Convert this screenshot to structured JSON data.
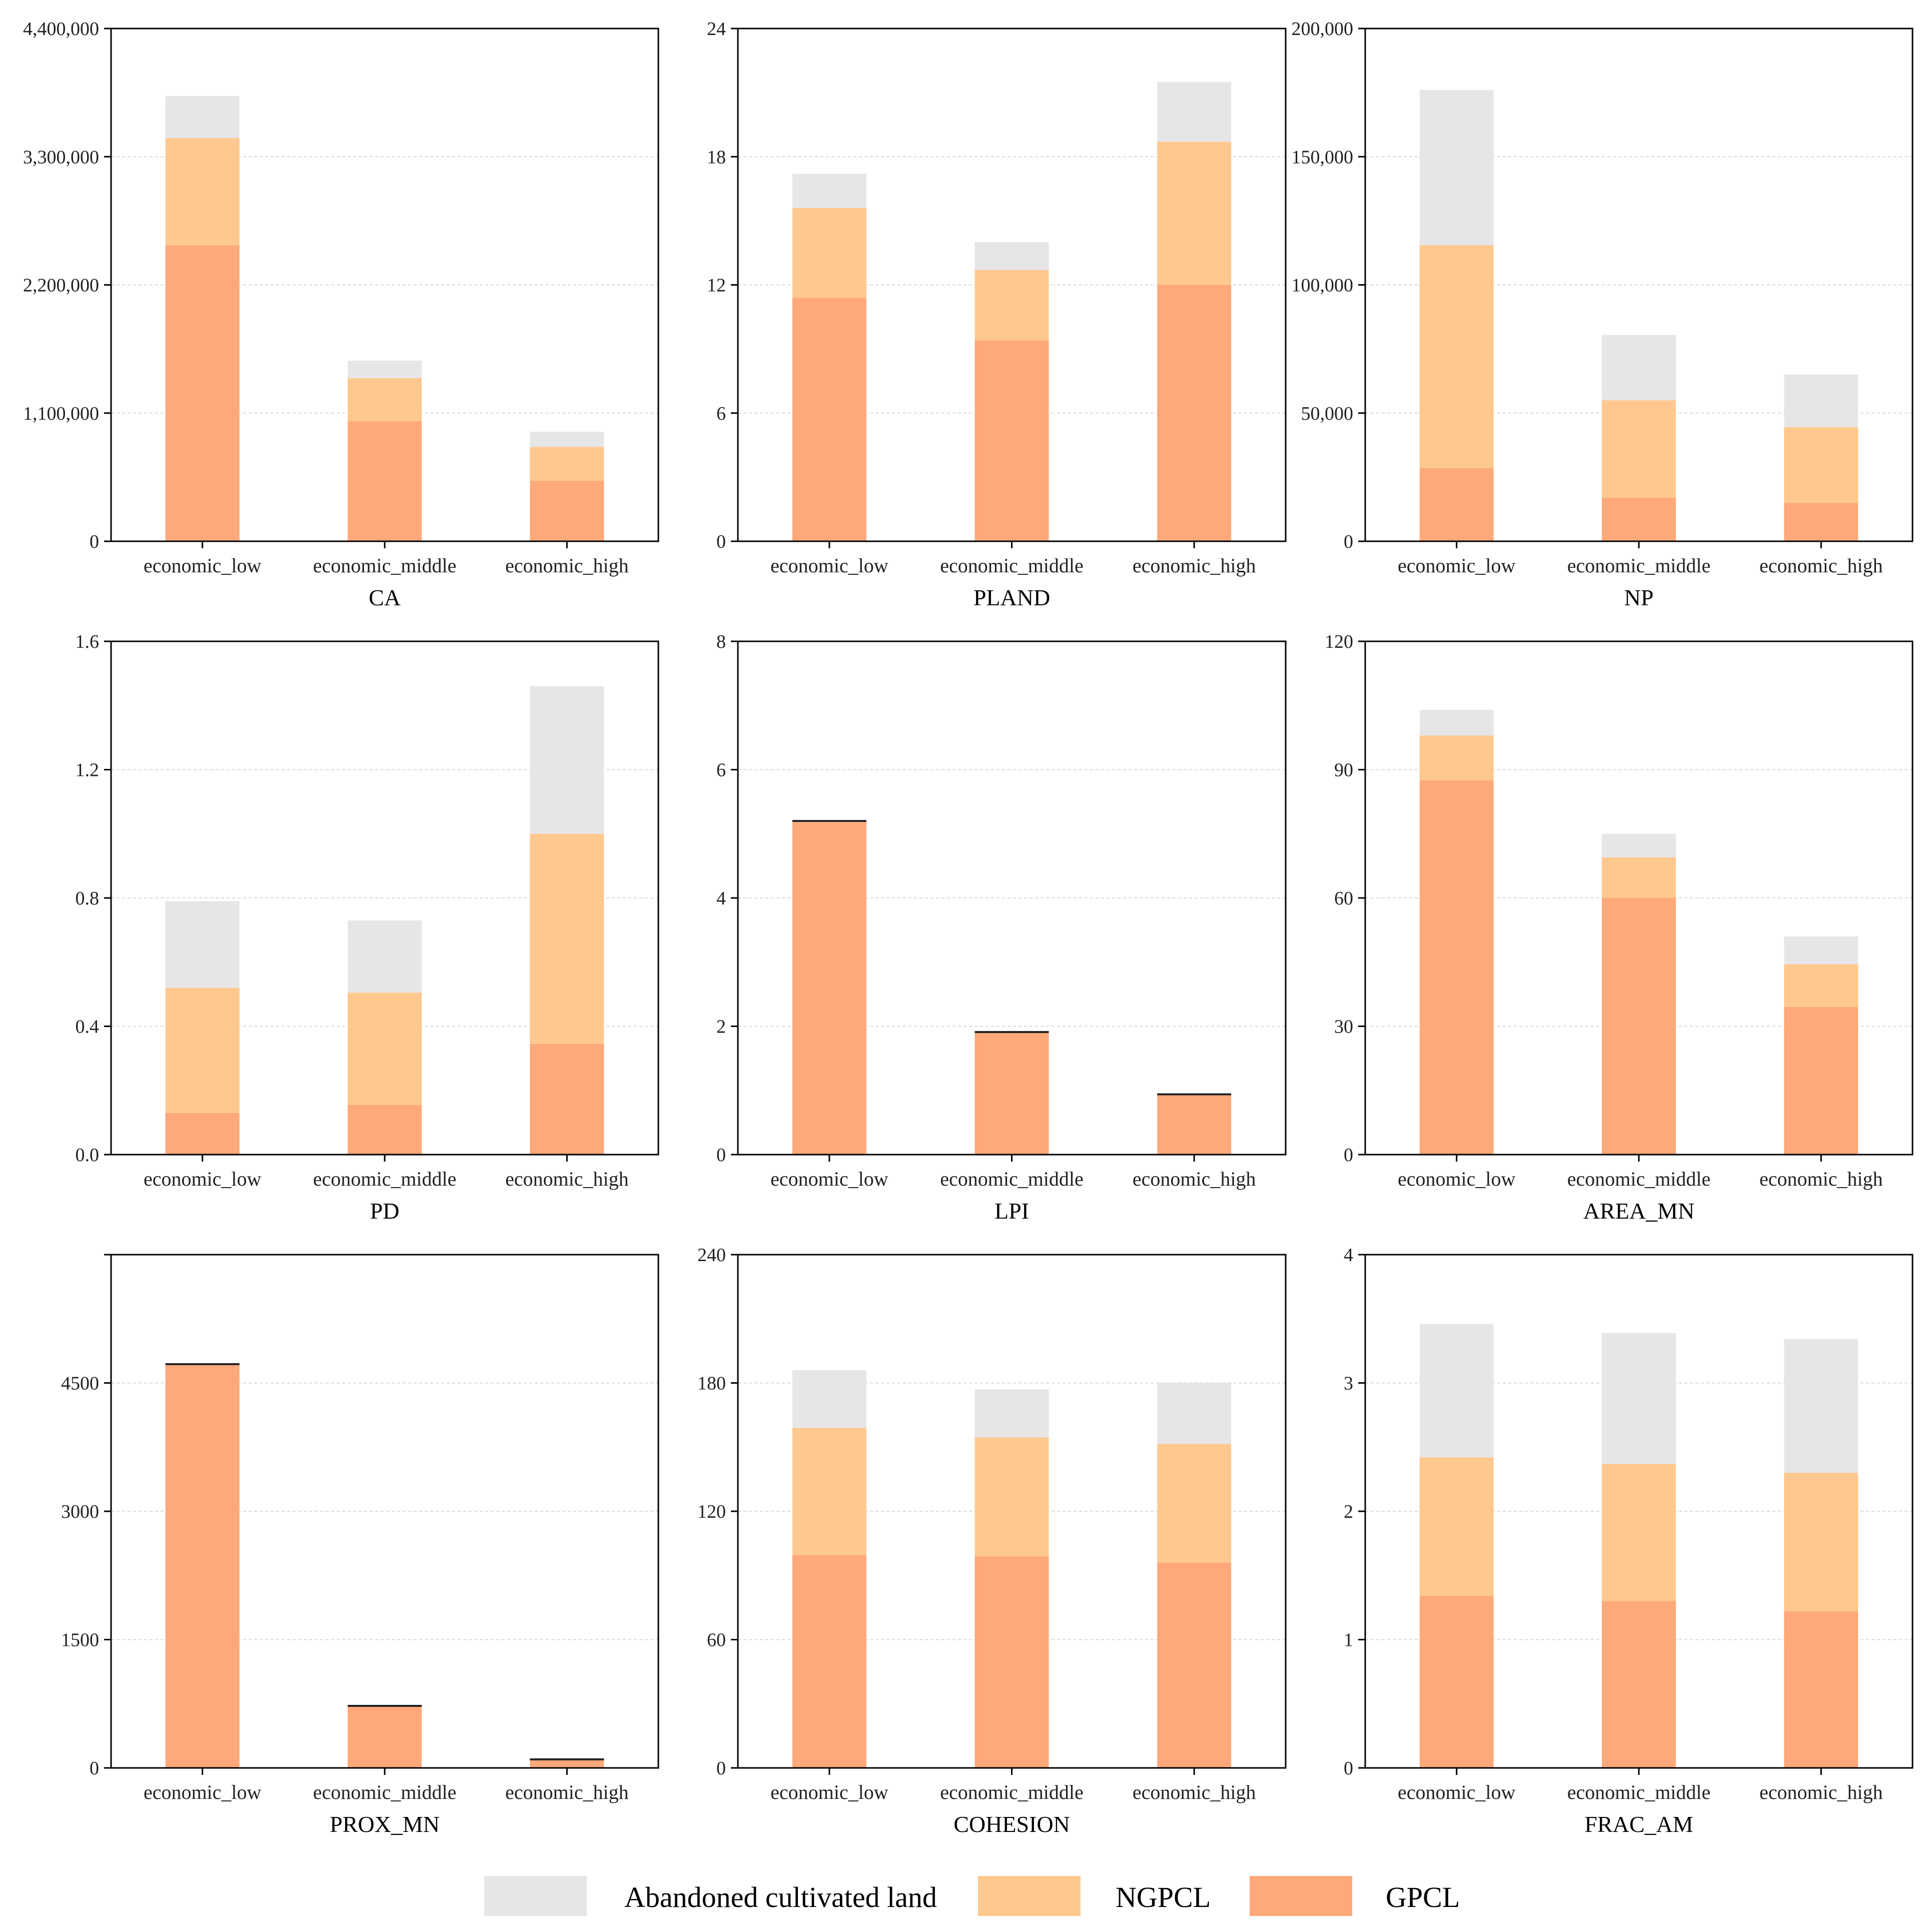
{
  "series_names": [
    "GPCL",
    "NGPCL",
    "Abandoned cultivated land"
  ],
  "colors": {
    "GPCL": "#FFA87A",
    "NGPCL": "#FFC88E",
    "Abandoned cultivated land": "#E6E6E6"
  },
  "legend": [
    {
      "label": "Abandoned cultivated land",
      "color": "#E6E6E6"
    },
    {
      "label": "NGPCL",
      "color": "#FFC88E"
    },
    {
      "label": "GPCL",
      "color": "#FFA87A"
    }
  ],
  "chart_data": [
    {
      "type": "bar",
      "stacked": true,
      "xlabel": "CA",
      "categories": [
        "economic_low",
        "economic_middle",
        "economic_high"
      ],
      "ylim": [
        0,
        4400000
      ],
      "yticks": [
        0,
        1100000,
        2200000,
        3300000,
        4400000
      ],
      "ytick_labels": [
        "0",
        "1,100,000",
        "2,200,000",
        "3,300,000",
        "4,400,000"
      ],
      "series": [
        {
          "name": "GPCL",
          "values": [
            2540000,
            1030000,
            520000
          ]
        },
        {
          "name": "NGPCL",
          "values": [
            920000,
            370000,
            290000
          ]
        },
        {
          "name": "Abandoned cultivated land",
          "values": [
            360000,
            150000,
            130000
          ]
        }
      ]
    },
    {
      "type": "bar",
      "stacked": true,
      "xlabel": "PLAND",
      "categories": [
        "economic_low",
        "economic_middle",
        "economic_high"
      ],
      "ylim": [
        0,
        24
      ],
      "yticks": [
        0,
        6,
        12,
        18,
        24
      ],
      "ytick_labels": [
        "0",
        "6",
        "12",
        "18",
        "24"
      ],
      "series": [
        {
          "name": "GPCL",
          "values": [
            11.4,
            9.4,
            12.0
          ]
        },
        {
          "name": "NGPCL",
          "values": [
            4.2,
            3.3,
            6.7
          ]
        },
        {
          "name": "Abandoned cultivated land",
          "values": [
            1.6,
            1.3,
            2.8
          ]
        }
      ]
    },
    {
      "type": "bar",
      "stacked": true,
      "xlabel": "NP",
      "categories": [
        "economic_low",
        "economic_middle",
        "economic_high"
      ],
      "ylim": [
        0,
        200000
      ],
      "yticks": [
        0,
        50000,
        100000,
        150000,
        200000
      ],
      "ytick_labels": [
        "0",
        "50,000",
        "100,000",
        "150,000",
        "200,000"
      ],
      "series": [
        {
          "name": "GPCL",
          "values": [
            28500,
            17000,
            15000
          ]
        },
        {
          "name": "NGPCL",
          "values": [
            87000,
            38000,
            29500
          ]
        },
        {
          "name": "Abandoned cultivated land",
          "values": [
            60500,
            25500,
            20500
          ]
        }
      ]
    },
    {
      "type": "bar",
      "stacked": true,
      "xlabel": "PD",
      "categories": [
        "economic_low",
        "economic_middle",
        "economic_high"
      ],
      "ylim": [
        0,
        1.6
      ],
      "yticks": [
        0,
        0.4,
        0.8,
        1.2,
        1.6
      ],
      "ytick_labels": [
        "0.0",
        "0.4",
        "0.8",
        "1.2",
        "1.6"
      ],
      "series": [
        {
          "name": "GPCL",
          "values": [
            0.13,
            0.155,
            0.345
          ]
        },
        {
          "name": "NGPCL",
          "values": [
            0.39,
            0.35,
            0.655
          ]
        },
        {
          "name": "Abandoned cultivated land",
          "values": [
            0.27,
            0.225,
            0.46
          ]
        }
      ]
    },
    {
      "type": "bar",
      "stacked": true,
      "xlabel": "LPI",
      "categories": [
        "economic_low",
        "economic_middle",
        "economic_high"
      ],
      "ylim": [
        0,
        8
      ],
      "yticks": [
        0,
        2,
        4,
        6,
        8
      ],
      "ytick_labels": [
        "0",
        "2",
        "4",
        "6",
        "8"
      ],
      "series": [
        {
          "name": "GPCL",
          "values": [
            5.18,
            1.9,
            0.93
          ]
        },
        {
          "name": "NGPCL",
          "values": [
            0.02,
            0.01,
            0.01
          ]
        },
        {
          "name": "Abandoned cultivated land",
          "values": [
            0.0,
            0.0,
            0.0
          ]
        }
      ]
    },
    {
      "type": "bar",
      "stacked": true,
      "xlabel": "AREA_MN",
      "categories": [
        "economic_low",
        "economic_middle",
        "economic_high"
      ],
      "ylim": [
        0,
        120
      ],
      "yticks": [
        0,
        30,
        60,
        90,
        120
      ],
      "ytick_labels": [
        "0",
        "30",
        "60",
        "90",
        "120"
      ],
      "series": [
        {
          "name": "GPCL",
          "values": [
            87.5,
            60.0,
            34.5
          ]
        },
        {
          "name": "NGPCL",
          "values": [
            10.5,
            9.5,
            10.0
          ]
        },
        {
          "name": "Abandoned cultivated land",
          "values": [
            6.0,
            5.5,
            6.5
          ]
        }
      ]
    },
    {
      "type": "bar",
      "stacked": true,
      "xlabel": "PROX_MN",
      "categories": [
        "economic_low",
        "economic_middle",
        "economic_high"
      ],
      "ylim": [
        0,
        6000
      ],
      "yticks": [
        0,
        1500,
        3000,
        4500
      ],
      "ytick_labels": [
        "0",
        "1500",
        "3000",
        "4500"
      ],
      "series": [
        {
          "name": "GPCL",
          "values": [
            4710,
            720,
            95
          ]
        },
        {
          "name": "NGPCL",
          "values": [
            10,
            5,
            5
          ]
        },
        {
          "name": "Abandoned cultivated land",
          "values": [
            0,
            0,
            0
          ]
        }
      ]
    },
    {
      "type": "bar",
      "stacked": true,
      "xlabel": "COHESION",
      "categories": [
        "economic_low",
        "economic_middle",
        "economic_high"
      ],
      "ylim": [
        0,
        240
      ],
      "yticks": [
        0,
        60,
        120,
        180,
        240
      ],
      "ytick_labels": [
        "0",
        "60",
        "120",
        "180",
        "240"
      ],
      "series": [
        {
          "name": "GPCL",
          "values": [
            99.5,
            99.0,
            96.0
          ]
        },
        {
          "name": "NGPCL",
          "values": [
            59.5,
            55.5,
            55.5
          ]
        },
        {
          "name": "Abandoned cultivated land",
          "values": [
            27.0,
            22.5,
            28.5
          ]
        }
      ]
    },
    {
      "type": "bar",
      "stacked": true,
      "xlabel": "FRAC_AM",
      "categories": [
        "economic_low",
        "economic_middle",
        "economic_high"
      ],
      "ylim": [
        0,
        4
      ],
      "yticks": [
        0,
        1,
        2,
        3,
        4
      ],
      "ytick_labels": [
        "0",
        "1",
        "2",
        "3",
        "4"
      ],
      "series": [
        {
          "name": "GPCL",
          "values": [
            1.34,
            1.3,
            1.22
          ]
        },
        {
          "name": "NGPCL",
          "values": [
            1.08,
            1.07,
            1.08
          ]
        },
        {
          "name": "Abandoned cultivated land",
          "values": [
            1.04,
            1.02,
            1.04
          ]
        }
      ]
    }
  ]
}
